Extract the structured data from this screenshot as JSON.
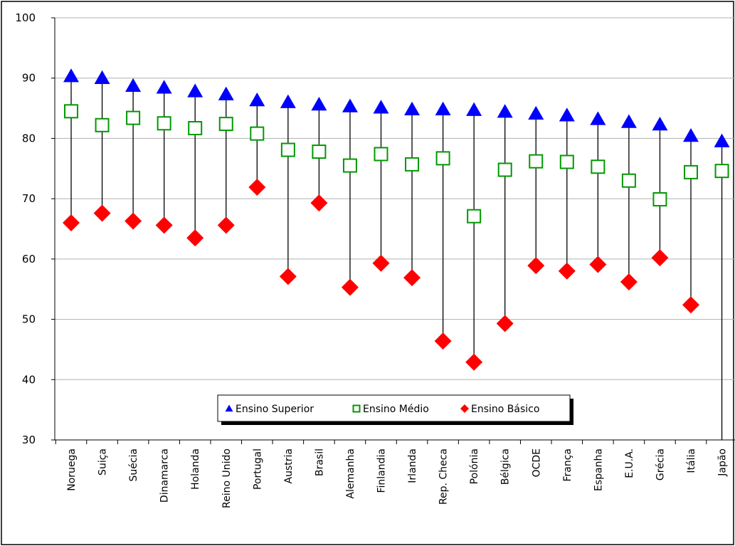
{
  "chart_data": {
    "type": "scatter",
    "title": "",
    "xlabel": "",
    "ylabel": "",
    "ylim": [
      30,
      100
    ],
    "y_ticks": [
      30,
      40,
      50,
      60,
      70,
      80,
      90,
      100
    ],
    "grid": true,
    "legend_position": "bottom-center",
    "categories": [
      "Noruega",
      "Suiça",
      "Suécia",
      "Dinamarca",
      "Holanda",
      "Reino Unido",
      "Portugal",
      "Austria",
      "Brasil",
      "Alemanha",
      "Finlandia",
      "Irlanda",
      "Rep. Checa",
      "Polónia",
      "Bélgica",
      "OCDE",
      "França",
      "Espanha",
      "E.U.A.",
      "Grécia",
      "Itália",
      "Japão"
    ],
    "series": [
      {
        "name": "Ensino Superior",
        "marker": "triangle",
        "color": "#0000ff",
        "values": [
          90.3,
          90.0,
          88.7,
          88.4,
          87.8,
          87.3,
          86.3,
          86.0,
          85.6,
          85.3,
          85.1,
          84.8,
          84.8,
          84.7,
          84.4,
          84.1,
          83.8,
          83.2,
          82.7,
          82.3,
          80.4,
          79.5
        ]
      },
      {
        "name": "Ensino Médio",
        "marker": "square-open",
        "color": "#009900",
        "values": [
          84.5,
          82.2,
          83.4,
          82.5,
          81.7,
          82.4,
          80.8,
          78.1,
          77.8,
          75.5,
          77.4,
          75.7,
          76.7,
          67.1,
          74.8,
          76.2,
          76.1,
          75.3,
          73.0,
          69.9,
          74.4,
          74.6
        ]
      },
      {
        "name": "Ensino Básico",
        "marker": "diamond",
        "color": "#ff0000",
        "values": [
          66.0,
          67.6,
          66.3,
          65.6,
          63.5,
          65.6,
          71.9,
          57.1,
          69.3,
          55.3,
          59.3,
          56.9,
          46.4,
          42.9,
          49.3,
          58.9,
          58.0,
          59.1,
          56.2,
          60.2,
          52.4,
          30.0
        ]
      }
    ]
  }
}
